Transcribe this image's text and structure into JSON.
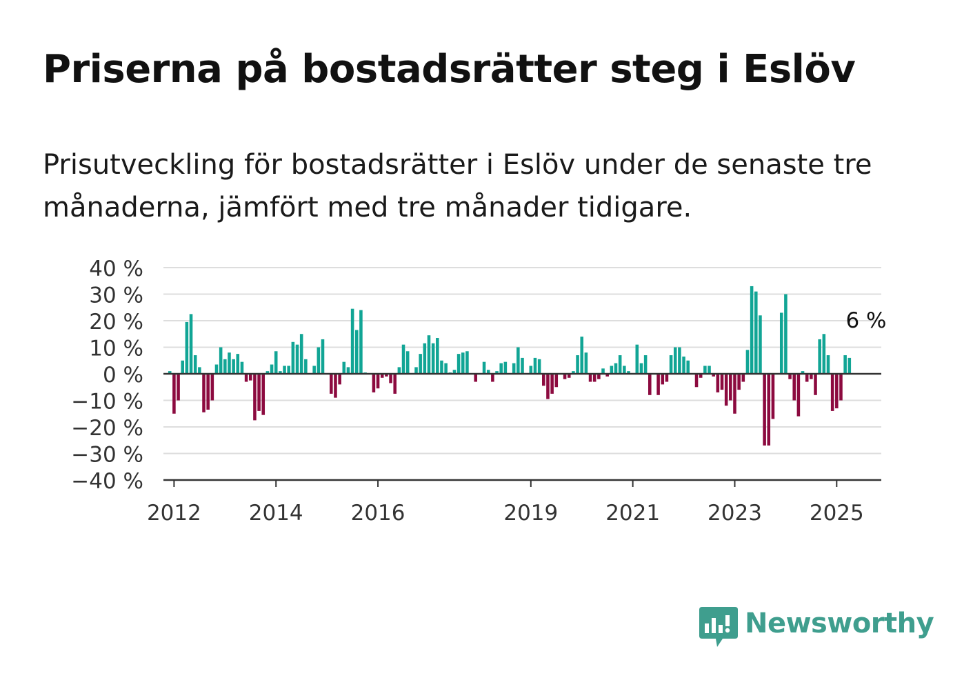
{
  "header": {
    "title": "Priserna på bostadsrätter steg i Eslöv",
    "subtitle": "Prisutveckling för bostadsrätter i Eslöv under de senaste tre månaderna, jämfört med tre månader tidigare."
  },
  "brand": {
    "name": "Newsworthy",
    "color": "#3f9e8e",
    "icon": "newsworthy-chart-icon"
  },
  "colors": {
    "positive": "#11a595",
    "negative": "#8c0a3f",
    "grid": "#dddddd",
    "axis": "#333333"
  },
  "chart_data": {
    "type": "bar",
    "title": "Priserna på bostadsrätter steg i Eslöv",
    "subtitle": "Prisutveckling för bostadsrätter i Eslöv under de senaste tre månaderna, jämfört med tre månader tidigare.",
    "ylim": [
      -40,
      40
    ],
    "yticks": [
      40,
      30,
      20,
      10,
      0,
      -10,
      -20,
      -30,
      -40
    ],
    "ytick_labels": [
      "40 %",
      "30 %",
      "20 %",
      "10 %",
      "0 %",
      "−10 %",
      "−20 %",
      "−30 %",
      "−40 %"
    ],
    "xticks": [
      2012,
      2014,
      2016,
      2019,
      2021,
      2023,
      2025
    ],
    "xtick_labels": [
      "2012",
      "2014",
      "2016",
      "2019",
      "2021",
      "2023",
      "2025"
    ],
    "grid": true,
    "annotation": {
      "text": "6 %",
      "value": 6,
      "date": "2025-05"
    },
    "series": [
      {
        "start": "2011-12",
        "values": [
          1,
          -15,
          -10,
          5,
          19.5,
          22.5,
          7,
          2.5,
          -14.5,
          -13.5,
          -10,
          3.5,
          10,
          5.5,
          8,
          5.5,
          7.5,
          4.5,
          -3,
          -2.5,
          -17.5,
          -14,
          -15.5,
          1,
          3.5,
          8.5,
          1,
          3,
          3,
          12,
          11,
          15,
          5.5,
          0,
          3,
          10,
          13,
          0,
          -7.5,
          -9,
          -4,
          4.5,
          2.5,
          24.5,
          16.5,
          24,
          0.5,
          0,
          -7,
          -5.5,
          -1.5,
          -1,
          -3.5,
          -7.5,
          2.5,
          11,
          8.5,
          0,
          2.5,
          7.5,
          11.5,
          14.5,
          11.5,
          13.5,
          5,
          4,
          0.5,
          1.5,
          7.5,
          8,
          8.5,
          0,
          -3,
          0,
          4.5,
          1.5,
          -3,
          1,
          4,
          4.5,
          0,
          4,
          10,
          6,
          0,
          3,
          6,
          5.5,
          -4.5,
          -9.5,
          -7.5,
          -5,
          0,
          -2,
          -1.5,
          1,
          7,
          14,
          8,
          -3,
          -3,
          -2,
          2,
          -1,
          3,
          4,
          7,
          3,
          1,
          0,
          11,
          4,
          7,
          -8,
          0,
          -8,
          -4,
          -3,
          7,
          10,
          10,
          6.5,
          5,
          0,
          -5,
          -1.5,
          3,
          3,
          -1,
          -7,
          -6,
          -12,
          -10,
          -15,
          -6,
          -3,
          9,
          33,
          31,
          22,
          -27,
          -27,
          -17,
          0,
          23,
          30,
          -2,
          -10,
          -16,
          1,
          -3,
          -2,
          -8,
          13,
          15,
          7,
          -14,
          -13,
          -10,
          7,
          6
        ]
      }
    ]
  }
}
